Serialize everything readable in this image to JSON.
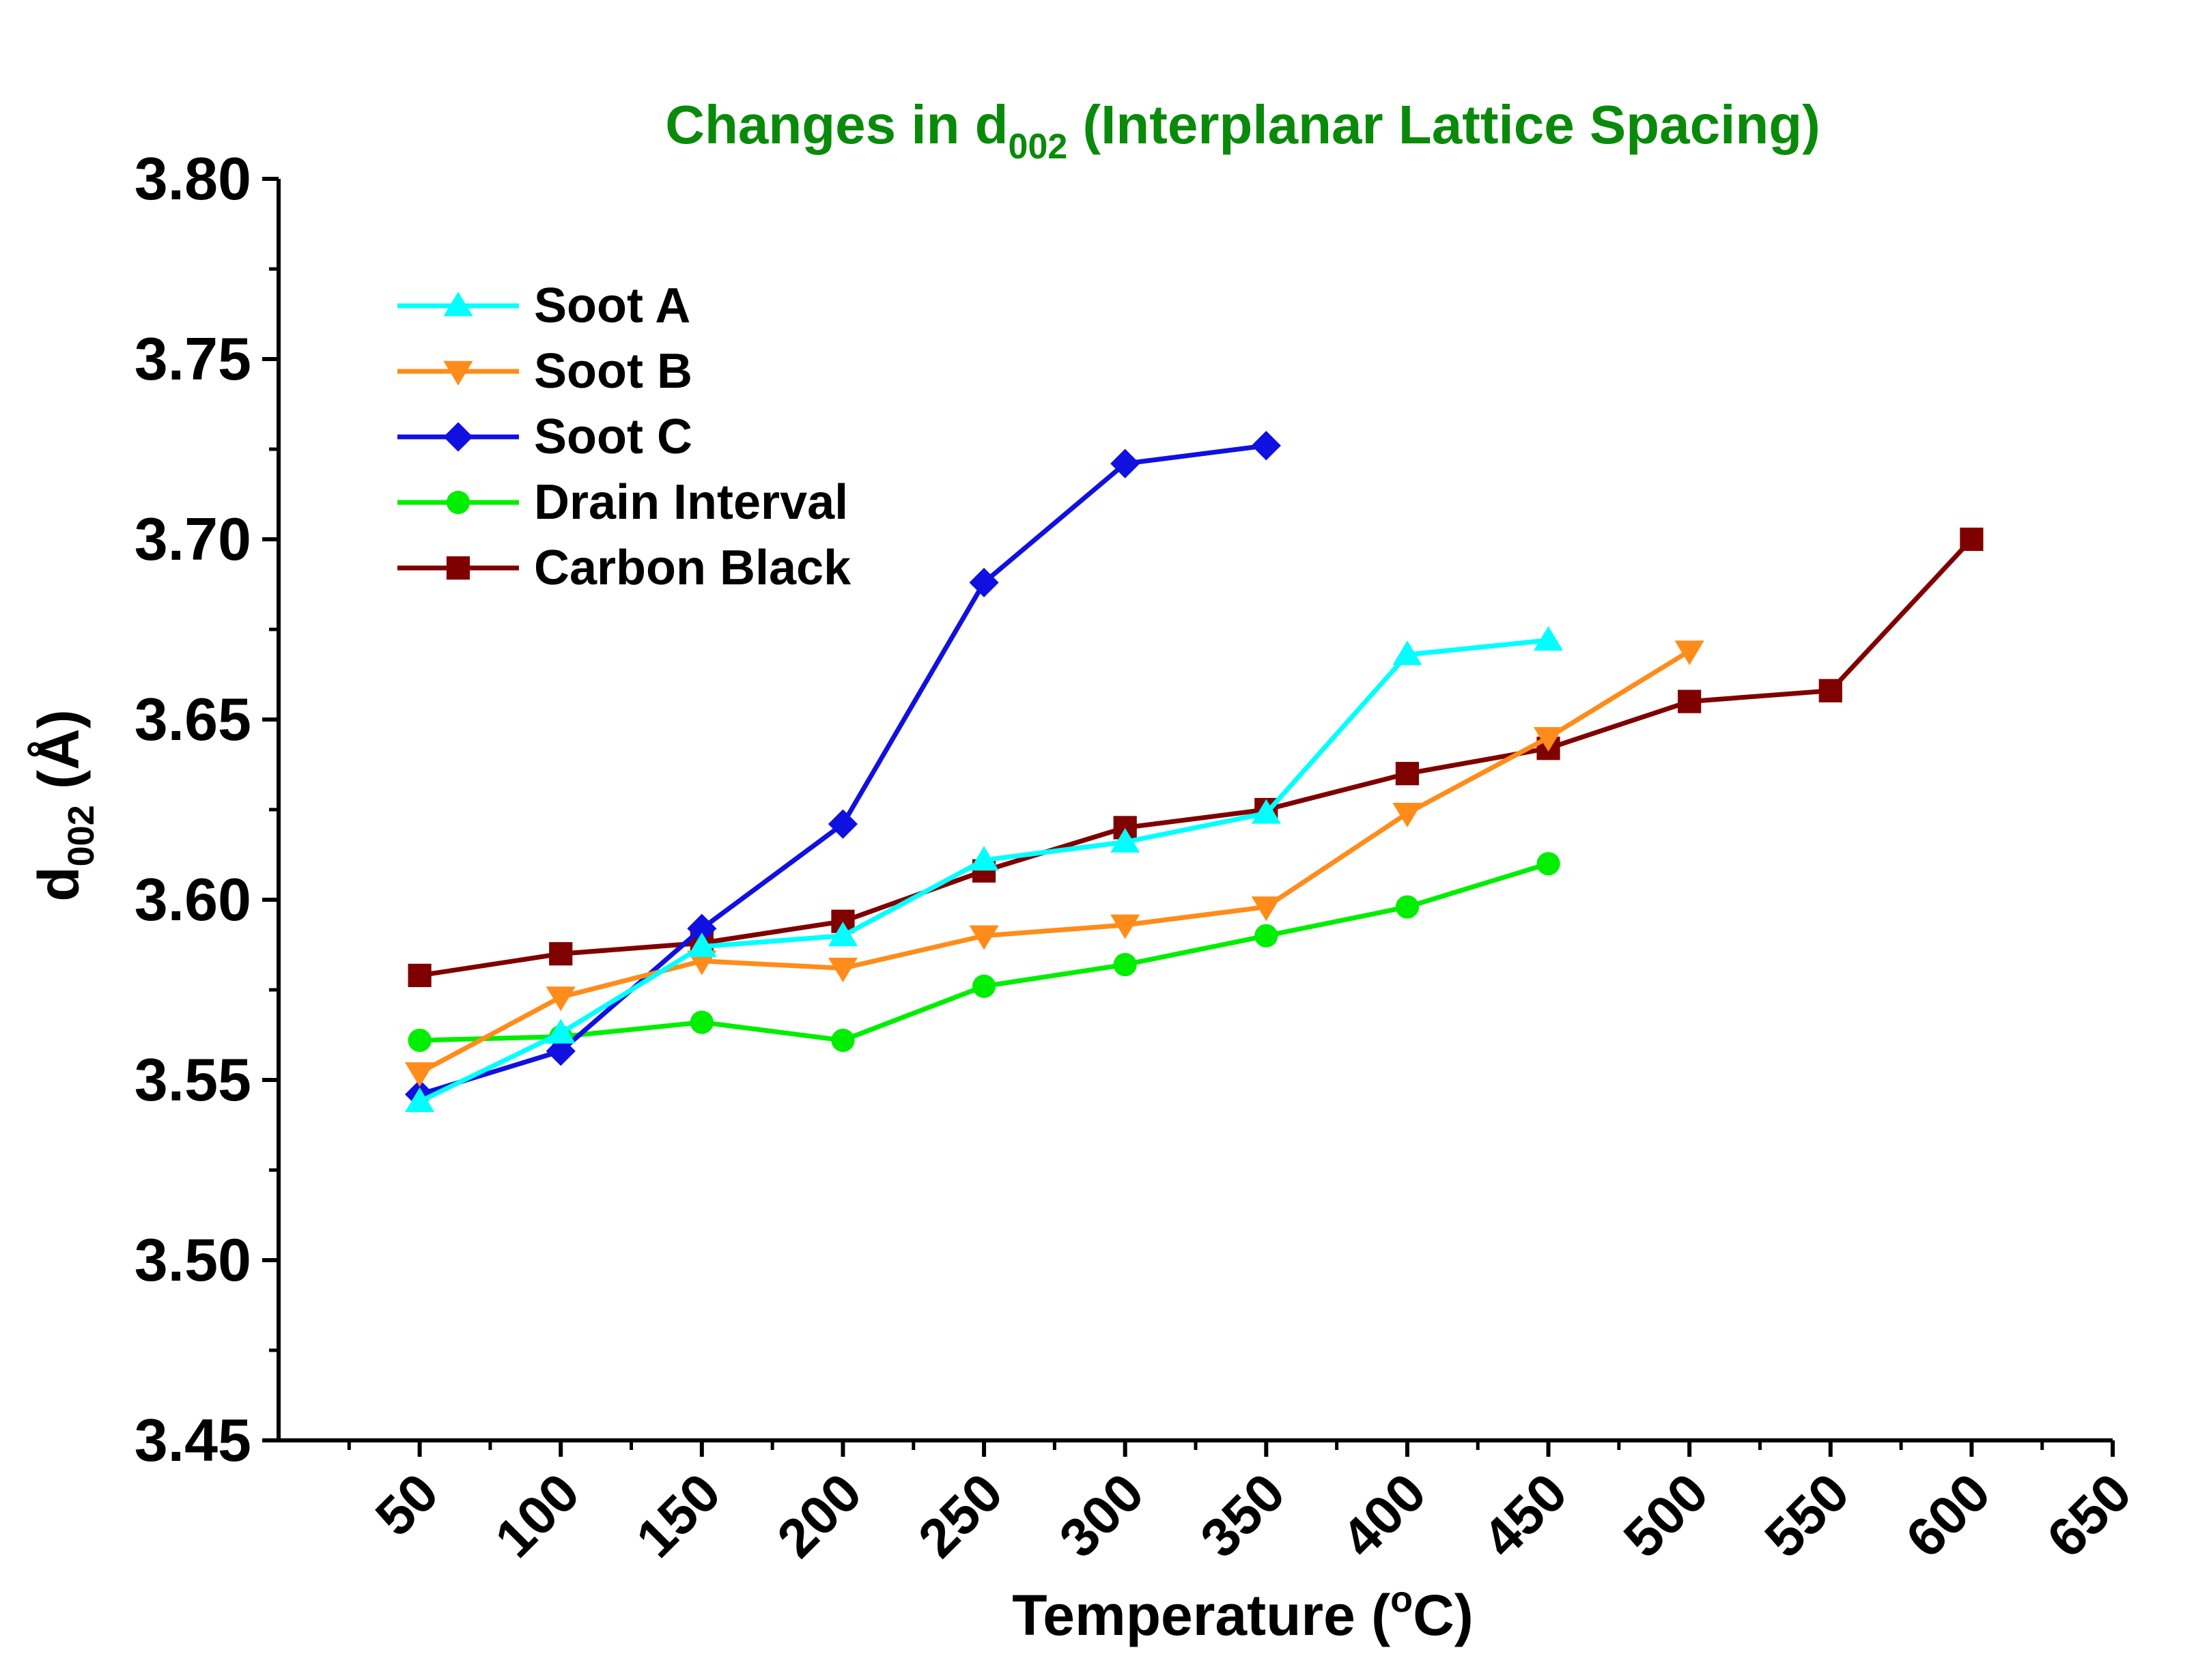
{
  "chart_data": {
    "type": "line",
    "title": {
      "prefix": "Changes in d",
      "subscript": "002",
      "suffix": " (Interplanar Lattice Spacing)",
      "color": "#0a8a0a"
    },
    "xlabel": {
      "prefix": "Temperature (",
      "superscript": "o",
      "suffix": "C)"
    },
    "ylabel": {
      "prefix": "d",
      "subscript": "002",
      "suffix": " (Å)"
    },
    "xlim": [
      0,
      650
    ],
    "ylim": [
      3.45,
      3.8
    ],
    "x_ticks": [
      50,
      100,
      150,
      200,
      250,
      300,
      350,
      400,
      450,
      500,
      550,
      600,
      650
    ],
    "x_tick_labels": [
      "50",
      "100",
      "150",
      "200",
      "250",
      "300",
      "350",
      "400",
      "450",
      "500",
      "550",
      "600",
      "650"
    ],
    "y_ticks": [
      3.45,
      3.5,
      3.55,
      3.6,
      3.65,
      3.7,
      3.75,
      3.8
    ],
    "y_tick_labels": [
      "3.45",
      "3.50",
      "3.55",
      "3.60",
      "3.65",
      "3.70",
      "3.75",
      "3.80"
    ],
    "grid": false,
    "legend_position": "top-left",
    "series": [
      {
        "name": "Soot A",
        "color": "#00ffff",
        "marker": "triangle-up",
        "x": [
          50,
          100,
          150,
          200,
          250,
          300,
          350,
          400,
          450
        ],
        "y": [
          3.544,
          3.563,
          3.587,
          3.59,
          3.611,
          3.616,
          3.624,
          3.668,
          3.672
        ]
      },
      {
        "name": "Soot B",
        "color": "#ff8c1a",
        "marker": "triangle-down",
        "x": [
          50,
          100,
          150,
          200,
          250,
          300,
          350,
          400,
          450,
          500
        ],
        "y": [
          3.552,
          3.573,
          3.583,
          3.581,
          3.59,
          3.593,
          3.598,
          3.624,
          3.645,
          3.669
        ]
      },
      {
        "name": "Soot C",
        "color": "#1010e0",
        "marker": "diamond",
        "x": [
          50,
          100,
          150,
          200,
          250,
          300,
          350
        ],
        "y": [
          3.546,
          3.558,
          3.592,
          3.621,
          3.688,
          3.721,
          3.726
        ]
      },
      {
        "name": "Drain Interval",
        "color": "#00ee00",
        "marker": "circle",
        "x": [
          50,
          100,
          150,
          200,
          250,
          300,
          350,
          400,
          450
        ],
        "y": [
          3.561,
          3.562,
          3.566,
          3.561,
          3.576,
          3.582,
          3.59,
          3.598,
          3.61
        ]
      },
      {
        "name": "Carbon Black",
        "color": "#800000",
        "marker": "square",
        "x": [
          50,
          100,
          150,
          200,
          250,
          300,
          350,
          400,
          450,
          500,
          550,
          600
        ],
        "y": [
          3.579,
          3.585,
          3.588,
          3.594,
          3.608,
          3.62,
          3.625,
          3.635,
          3.642,
          3.655,
          3.658,
          3.7
        ]
      }
    ]
  }
}
